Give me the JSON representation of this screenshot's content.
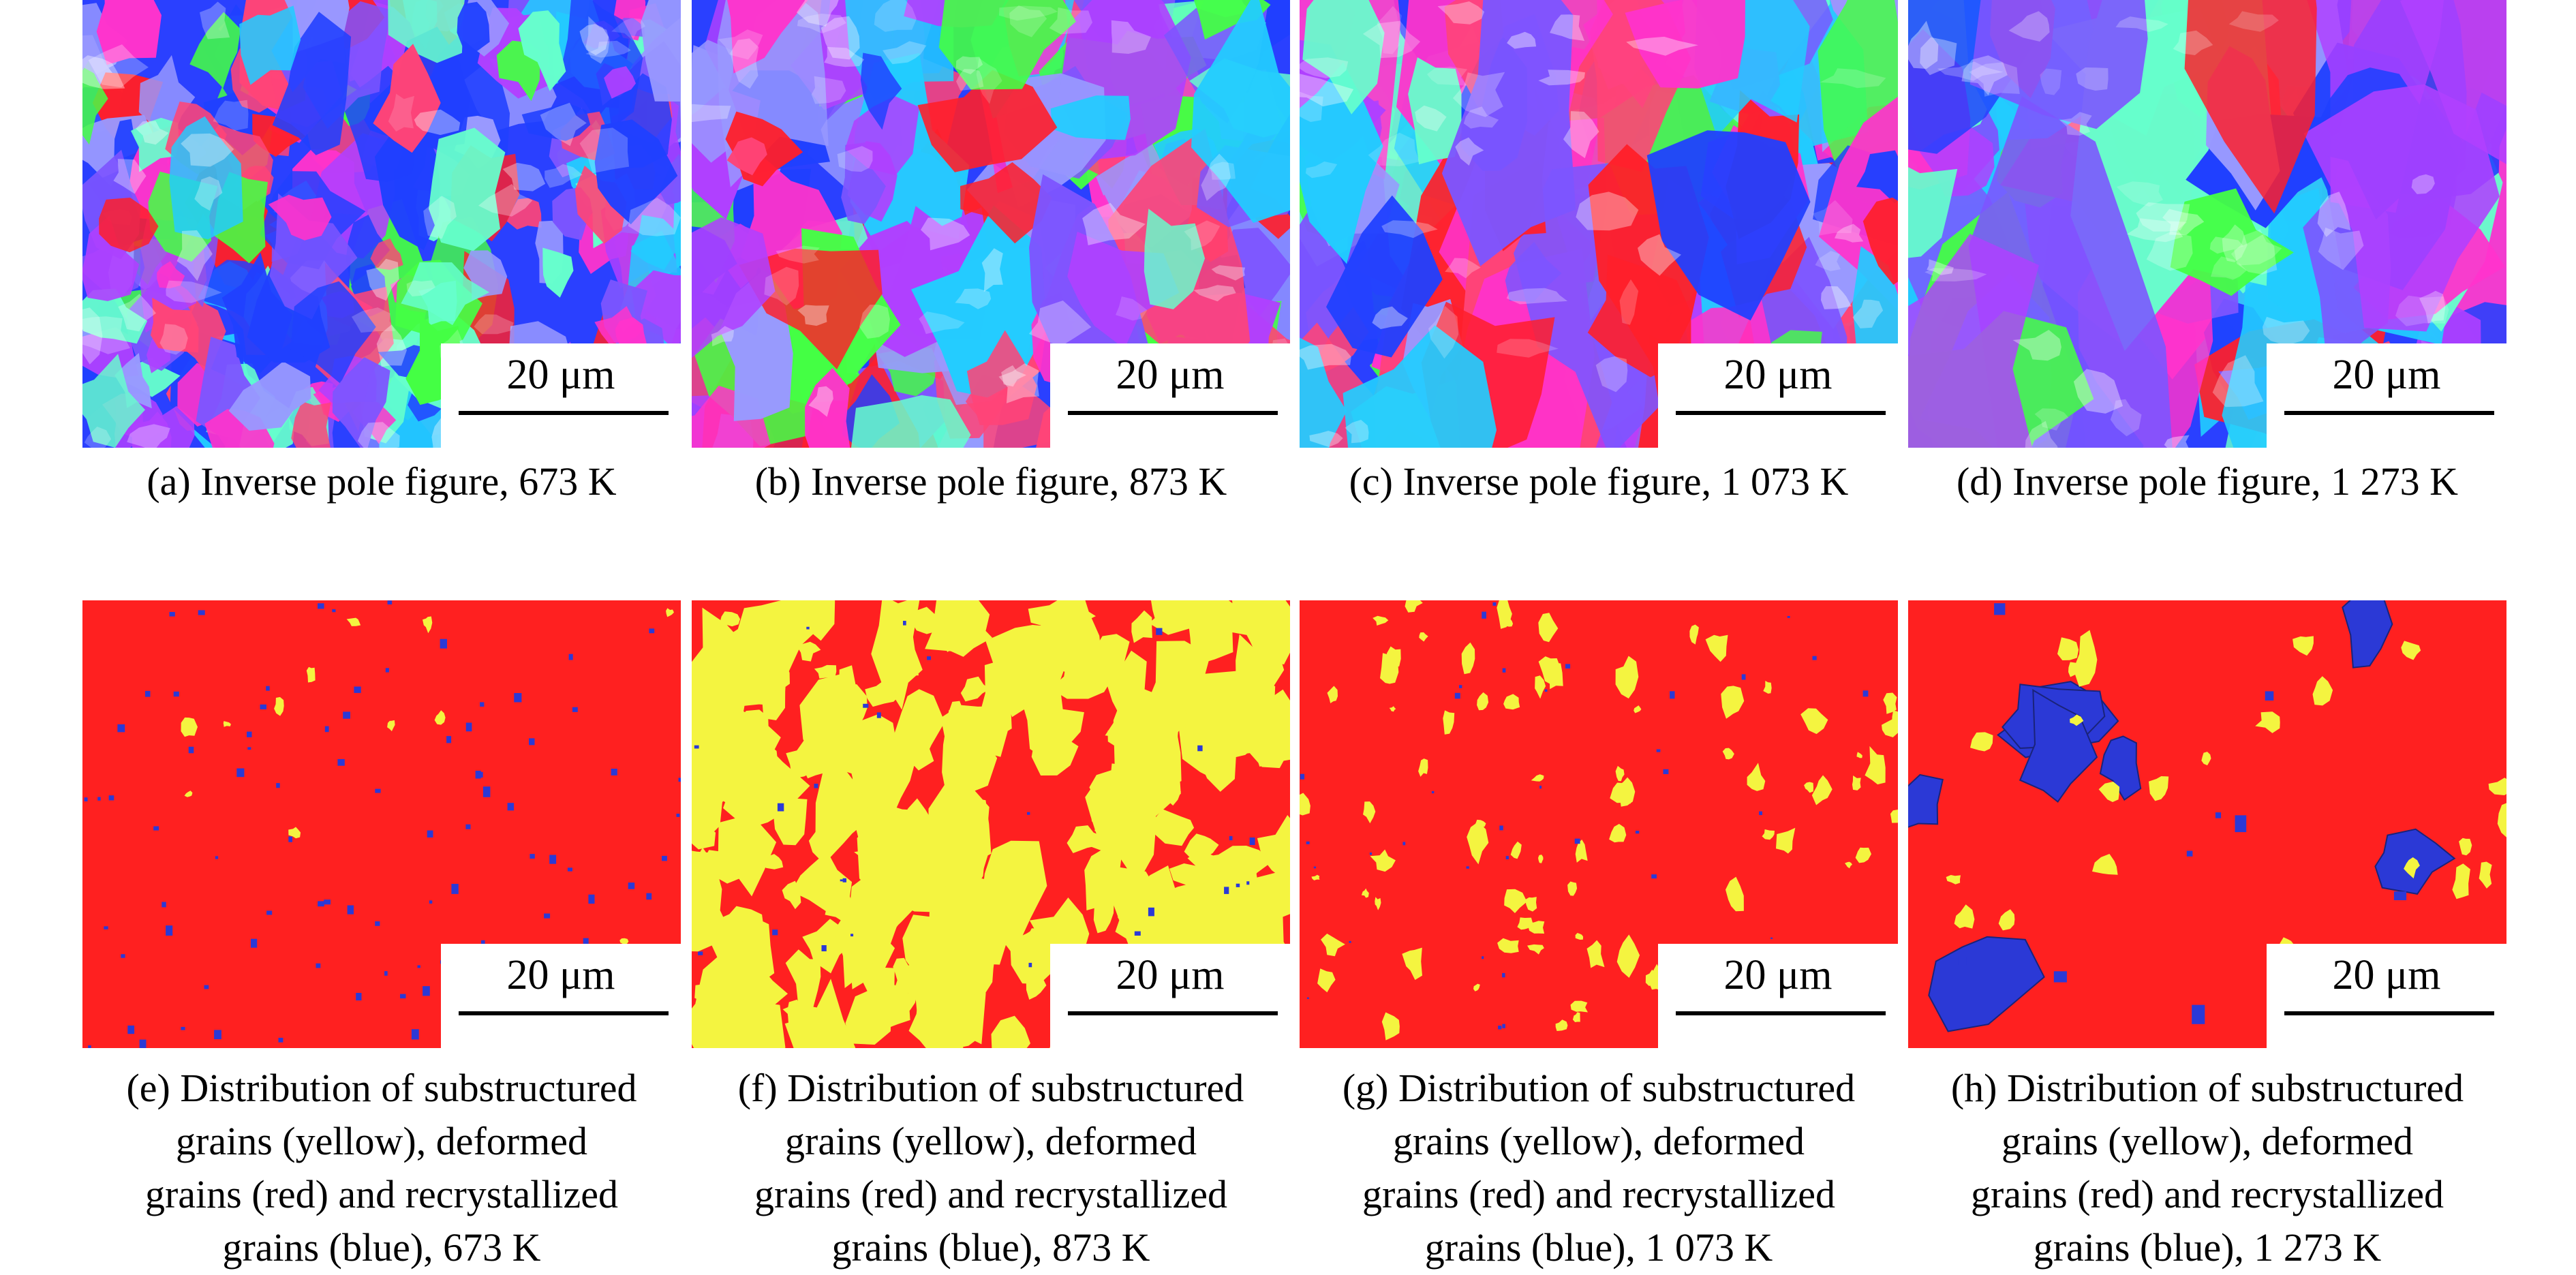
{
  "colors": {
    "deformed": "#ff2020",
    "substructured": "#f4f440",
    "recrystallized": "#2b39d6",
    "ipf_palette": [
      "#ff1f2a",
      "#2040ff",
      "#44ff44",
      "#ff33cc",
      "#22ccff",
      "#b040ff",
      "#ff4477",
      "#7d55ff",
      "#9999ff",
      "#66ffcc"
    ]
  },
  "figure": {
    "panels": [
      {
        "id": "a",
        "kind": "ipf",
        "scale": "20 μm",
        "caption": [
          "(a) Inverse pole figure, 673 K"
        ]
      },
      {
        "id": "b",
        "kind": "ipf",
        "scale": "20 μm",
        "caption": [
          "(b) Inverse pole figure, 873 K"
        ]
      },
      {
        "id": "c",
        "kind": "ipf",
        "scale": "20 μm",
        "caption": [
          "(c) Inverse pole figure, 1 073 K"
        ]
      },
      {
        "id": "d",
        "kind": "ipf",
        "scale": "20 μm",
        "caption": [
          "(d) Inverse pole figure, 1 273 K"
        ]
      },
      {
        "id": "e",
        "kind": "grain",
        "scale": "20 μm",
        "caption": [
          "(e) Distribution of substructured",
          "grains (yellow), deformed",
          "grains (red) and recrystallized",
          "grains (blue), 673 K"
        ]
      },
      {
        "id": "f",
        "kind": "grain",
        "scale": "20 μm",
        "caption": [
          "(f) Distribution of substructured",
          "grains (yellow), deformed",
          "grains (red) and recrystallized",
          "grains (blue), 873 K"
        ]
      },
      {
        "id": "g",
        "kind": "grain",
        "scale": "20 μm",
        "caption": [
          "(g) Distribution of substructured",
          "grains (yellow), deformed",
          "grains (red) and recrystallized",
          "grains (blue), 1 073 K"
        ]
      },
      {
        "id": "h",
        "kind": "grain",
        "scale": "20 μm",
        "caption": [
          "(h) Distribution of substructured",
          "grains (yellow), deformed",
          "grains (red) and recrystallized",
          "grains (blue), 1 273 K"
        ]
      }
    ]
  }
}
